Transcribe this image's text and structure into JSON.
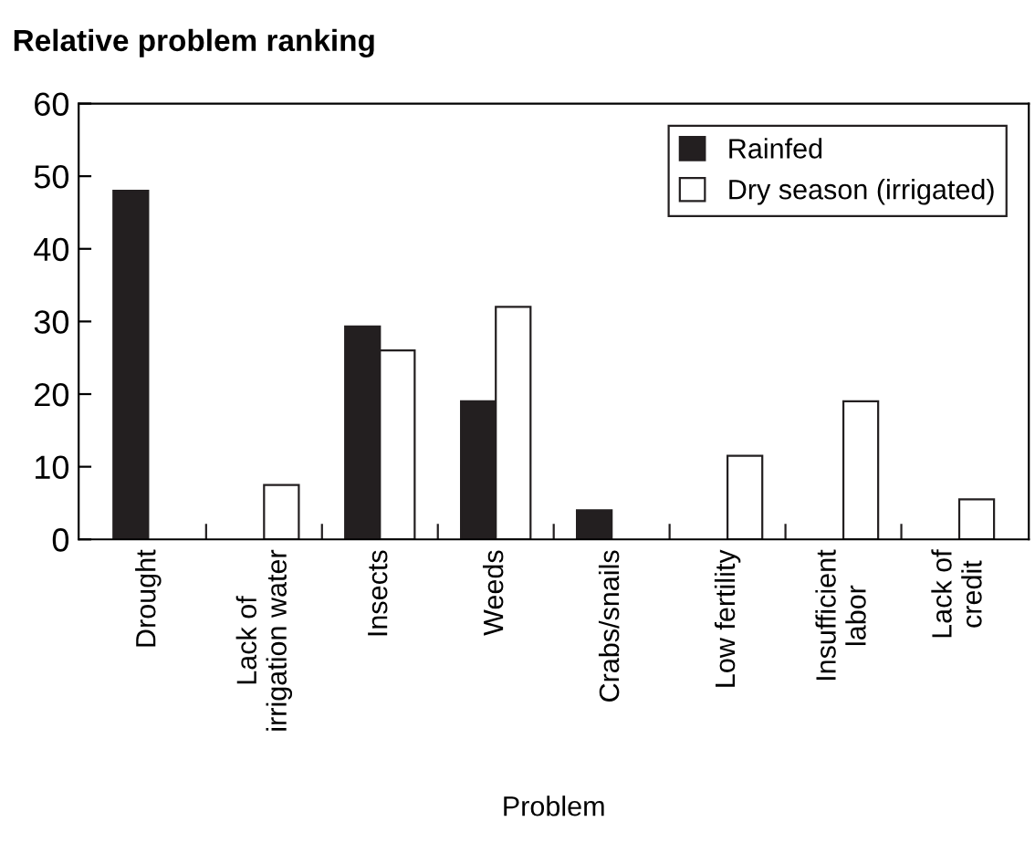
{
  "chart_data": {
    "type": "bar",
    "title": "Relative problem ranking",
    "xlabel": "Problem",
    "categories": [
      "Drought",
      "Lack of\nirrigation water",
      "Insects",
      "Weeds",
      "Crabs/snails",
      "Low fertility",
      "Insufficient\nlabor",
      "Lack of\ncredit"
    ],
    "series": [
      {
        "name": "Rainfed",
        "color": "#231f20",
        "values": [
          48,
          null,
          29.3,
          19,
          4,
          null,
          null,
          null
        ]
      },
      {
        "name": "Dry season (irrigated)",
        "color": "#ffffff",
        "values": [
          null,
          7.5,
          26,
          32,
          null,
          11.5,
          19,
          5.5
        ]
      }
    ],
    "ylim": [
      0,
      60
    ],
    "yticks": [
      0,
      10,
      20,
      30,
      40,
      50,
      60
    ],
    "grid": false,
    "legend": "top right"
  }
}
